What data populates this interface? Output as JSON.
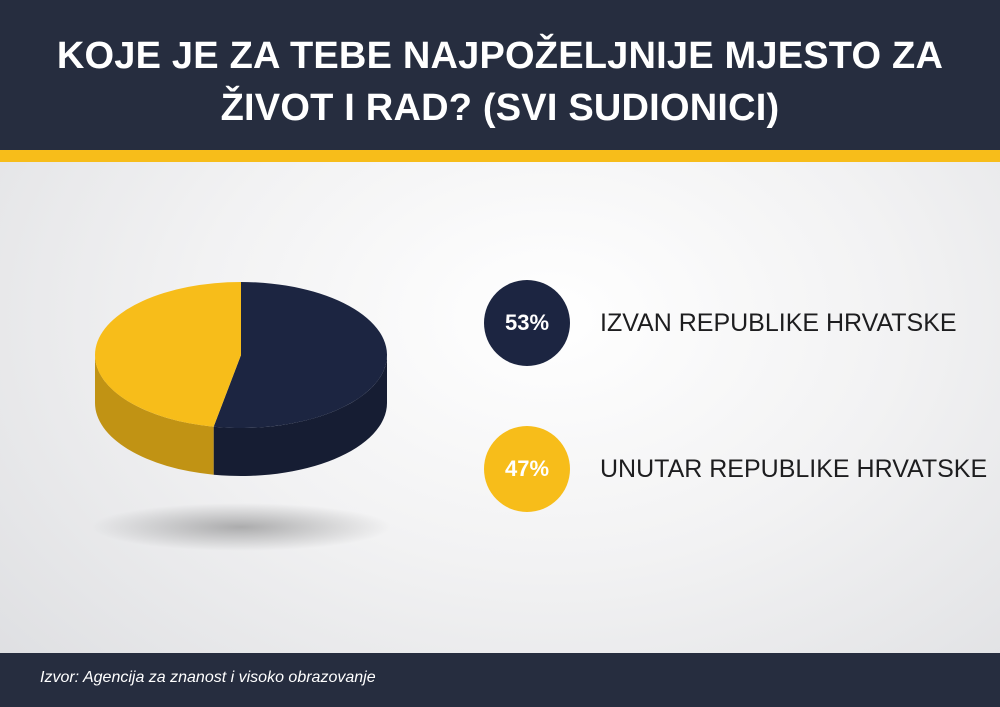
{
  "header": {
    "title_line1": "KOJE JE ZA TEBE NAJPOŽELJNIJE MJESTO ZA",
    "title_line2": "ŽIVOT I RAD? (SVI SUDIONICI)"
  },
  "chart_data": {
    "type": "pie",
    "style": "3d",
    "title": "KOJE JE ZA TEBE NAJPOŽELJNIJE MJESTO ZA ŽIVOT I RAD? (SVI SUDIONICI)",
    "categories": [
      "IZVAN REPUBLIKE HRVATSKE",
      "UNUTAR REPUBLIKE HRVATSKE"
    ],
    "values": [
      53,
      47
    ],
    "value_labels": [
      "53%",
      "47%"
    ],
    "colors": [
      "#1c2541",
      "#f7bd1a"
    ],
    "legend_position": "right"
  },
  "footer": {
    "source": "Izvor: Agencija za znanost i visoko obrazovanje"
  },
  "colors": {
    "header_bg": "#262d3f",
    "accent_stripe": "#f7bd1a",
    "footer_bg": "#262d3f"
  }
}
